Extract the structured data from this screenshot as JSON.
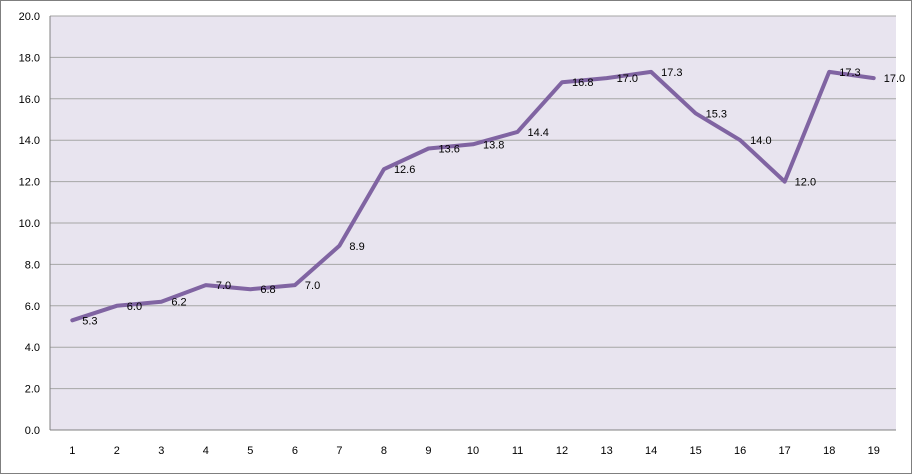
{
  "chart_data": {
    "type": "line",
    "title": "",
    "xlabel": "",
    "ylabel": "",
    "categories": [
      "1",
      "2",
      "3",
      "4",
      "5",
      "6",
      "7",
      "8",
      "9",
      "10",
      "11",
      "12",
      "13",
      "14",
      "15",
      "16",
      "17",
      "18",
      "19"
    ],
    "series": [
      {
        "values": [
          5.3,
          6.0,
          6.2,
          7.0,
          6.8,
          7.0,
          8.9,
          12.6,
          13.6,
          13.8,
          14.4,
          16.8,
          17.0,
          17.3,
          15.3,
          14.0,
          12.0,
          17.3,
          17.0
        ],
        "color": "#8064a2"
      }
    ],
    "data_labels": [
      "5.3",
      "6.0",
      "6.2",
      "7.0",
      "6.8",
      "7.0",
      "8.9",
      "12.6",
      "13.6",
      "13.8",
      "14.4",
      "16.8",
      "17.0",
      "17.3",
      "15.3",
      "14.0",
      "12.0",
      "17.3",
      "17.0"
    ],
    "y_ticks": [
      "0.0",
      "2.0",
      "4.0",
      "6.0",
      "8.0",
      "10.0",
      "12.0",
      "14.0",
      "16.0",
      "18.0",
      "20.0"
    ],
    "ylim": [
      0,
      20
    ],
    "grid": "horizontal",
    "legend": "none",
    "plot_background": "#e8e4ef",
    "gridline_color": "#a6a6a6"
  }
}
